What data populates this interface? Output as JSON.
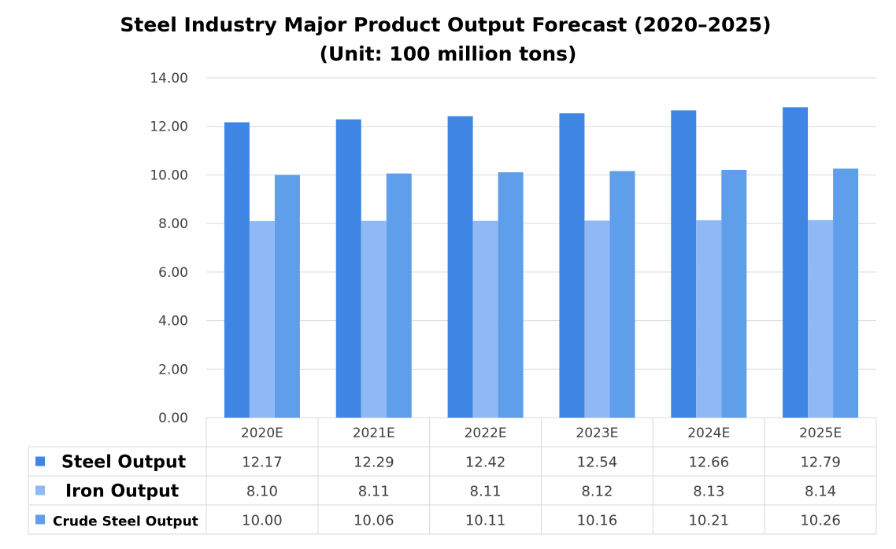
{
  "colors": {
    "steel": "#3F86E4",
    "iron": "#8FB9F4",
    "crude": "#5F9EEA",
    "grid": "#D9D9D9",
    "table_border": "#D9D9D9"
  },
  "chart_data": {
    "type": "bar",
    "title_lines": [
      "Steel Industry Major Product Output Forecast (2020–2025)",
      "(Unit: 100 million tons)"
    ],
    "xlabel": "",
    "ylabel": "",
    "ylim": [
      0,
      14
    ],
    "y_ticks": [
      "0.00",
      "2.00",
      "4.00",
      "6.00",
      "8.00",
      "10.00",
      "12.00",
      "14.00"
    ],
    "grid": true,
    "legend": "table-left",
    "categories": [
      "2020E",
      "2021E",
      "2022E",
      "2023E",
      "2024E",
      "2025E"
    ],
    "series": [
      {
        "name": "Steel Output",
        "color_key": "steel",
        "values": [
          12.17,
          12.29,
          12.42,
          12.54,
          12.66,
          12.79
        ],
        "labels": [
          "12.17",
          "12.29",
          "12.42",
          "12.54",
          "12.66",
          "12.79"
        ]
      },
      {
        "name": "Iron Output",
        "color_key": "iron",
        "values": [
          8.1,
          8.11,
          8.11,
          8.12,
          8.13,
          8.14
        ],
        "labels": [
          "8.10",
          "8.11",
          "8.11",
          "8.12",
          "8.13",
          "8.14"
        ]
      },
      {
        "name": "Crude Steel Output",
        "color_key": "crude",
        "values": [
          10.0,
          10.06,
          10.11,
          10.16,
          10.21,
          10.26
        ],
        "labels": [
          "10.00",
          "10.06",
          "10.11",
          "10.16",
          "10.21",
          "10.26"
        ]
      }
    ]
  }
}
